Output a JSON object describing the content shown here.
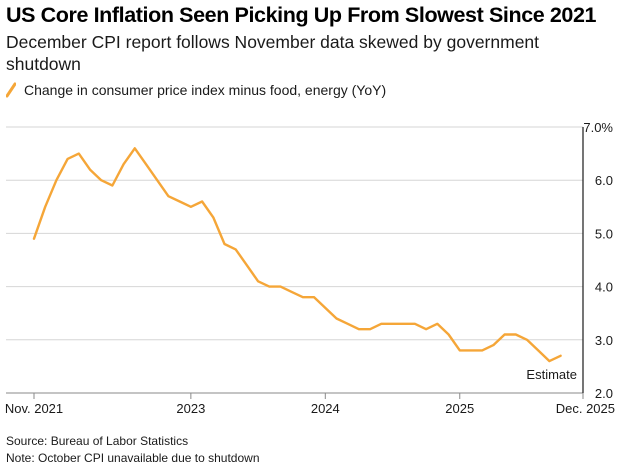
{
  "chart_data": {
    "type": "line",
    "title": "US Core Inflation Seen Picking Up From Slowest Since 2021",
    "subtitle": "December CPI report follows November data skewed by government shutdown",
    "series": [
      {
        "name": "Change in consumer price index minus food, energy (YoY)",
        "color": "#f5a638",
        "x": [
          0,
          1,
          2,
          3,
          4,
          5,
          6,
          7,
          8,
          9,
          10,
          11,
          12,
          13,
          14,
          15,
          16,
          17,
          18,
          19,
          20,
          21,
          22,
          23,
          24,
          25,
          26,
          27,
          28,
          29,
          30,
          31,
          32,
          33,
          34,
          35,
          36,
          37,
          38,
          39,
          40,
          41,
          42,
          43,
          44,
          45,
          46,
          47,
          48,
          49
        ],
        "values": [
          4.9,
          5.5,
          6.0,
          6.4,
          6.5,
          6.2,
          6.0,
          5.9,
          6.3,
          6.6,
          6.3,
          6.0,
          5.7,
          5.6,
          5.5,
          5.6,
          5.3,
          4.8,
          4.7,
          4.4,
          4.1,
          4.0,
          4.0,
          3.9,
          3.8,
          3.8,
          3.6,
          3.4,
          3.3,
          3.2,
          3.2,
          3.3,
          3.3,
          3.3,
          3.3,
          3.2,
          3.3,
          3.1,
          2.8,
          2.8,
          2.8,
          2.9,
          3.1,
          3.1,
          3.0,
          2.8,
          2.6,
          2.7,
          null,
          null
        ]
      }
    ],
    "y_axis": {
      "min": 2.0,
      "max": 7.0,
      "ticks": [
        "2.0",
        "3.0",
        "4.0",
        "5.0",
        "6.0",
        "7.0%"
      ],
      "position": "right",
      "grid": true
    },
    "x_axis": {
      "min": 0,
      "max": 49,
      "ticks": [
        {
          "x": 0,
          "label": "Nov. 2021"
        },
        {
          "x": 14,
          "label": "2023"
        },
        {
          "x": 26,
          "label": "2024"
        },
        {
          "x": 38,
          "label": "2025"
        },
        {
          "x": 49,
          "label": "Dec. 2025"
        }
      ]
    },
    "annotation": {
      "x": 49,
      "label": "Estimate"
    }
  },
  "footnotes": {
    "source": "Source: Bureau of Labor Statistics",
    "note": "Note: October CPI unavailable due to shutdown"
  }
}
